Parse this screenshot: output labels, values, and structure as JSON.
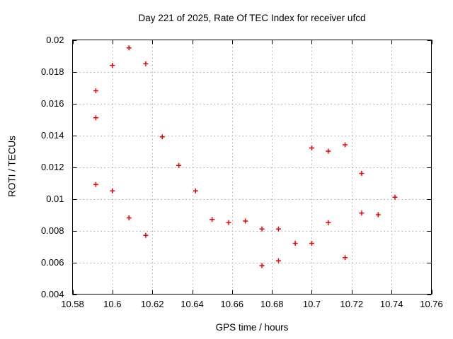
{
  "chart_data": {
    "type": "scatter",
    "title": "Day 221 of 2025, Rate Of TEC Index for receiver ufcd",
    "xlabel": "GPS time / hours",
    "ylabel": "ROTI / TECUs",
    "xlim": [
      10.58,
      10.76
    ],
    "ylim": [
      0.004,
      0.02
    ],
    "xtick_values": [
      10.58,
      10.6,
      10.62,
      10.64,
      10.66,
      10.68,
      10.7,
      10.72,
      10.74,
      10.76
    ],
    "xtick_labels": [
      "10.58",
      "10.6",
      "10.62",
      "10.64",
      "10.66",
      "10.68",
      "10.7",
      "10.72",
      "10.74",
      "10.76"
    ],
    "ytick_values": [
      0.004,
      0.006,
      0.008,
      0.01,
      0.012,
      0.014,
      0.016,
      0.018,
      0.02
    ],
    "ytick_labels": [
      "0.004",
      "0.006",
      "0.008",
      "0.01",
      "0.012",
      "0.014",
      "0.016",
      "0.018",
      "0.02"
    ],
    "grid": true,
    "legend_position": "none",
    "marker_style": "plus",
    "series": [
      {
        "name": "ROTI",
        "points": [
          [
            10.5917,
            0.0168
          ],
          [
            10.5917,
            0.0151
          ],
          [
            10.5917,
            0.0109
          ],
          [
            10.6,
            0.0184
          ],
          [
            10.6,
            0.0105
          ],
          [
            10.6083,
            0.0195
          ],
          [
            10.6083,
            0.0088
          ],
          [
            10.6167,
            0.0185
          ],
          [
            10.6167,
            0.0077
          ],
          [
            10.625,
            0.0139
          ],
          [
            10.6333,
            0.0121
          ],
          [
            10.6417,
            0.0105
          ],
          [
            10.65,
            0.0087
          ],
          [
            10.6583,
            0.0085
          ],
          [
            10.6667,
            0.0086
          ],
          [
            10.675,
            0.0081
          ],
          [
            10.675,
            0.0058
          ],
          [
            10.6833,
            0.0081
          ],
          [
            10.6833,
            0.0061
          ],
          [
            10.6917,
            0.0072
          ],
          [
            10.7,
            0.0072
          ],
          [
            10.7,
            0.0132
          ],
          [
            10.7083,
            0.013
          ],
          [
            10.7083,
            0.0085
          ],
          [
            10.7167,
            0.0134
          ],
          [
            10.7167,
            0.0063
          ],
          [
            10.725,
            0.0116
          ],
          [
            10.725,
            0.0091
          ],
          [
            10.7333,
            0.009
          ],
          [
            10.7417,
            0.0101
          ]
        ]
      }
    ],
    "colors": {
      "marker": "#ee0000",
      "grid": "#a8a8a8",
      "axis": "#000000",
      "text": "#000000",
      "background": "#ffffff"
    }
  }
}
